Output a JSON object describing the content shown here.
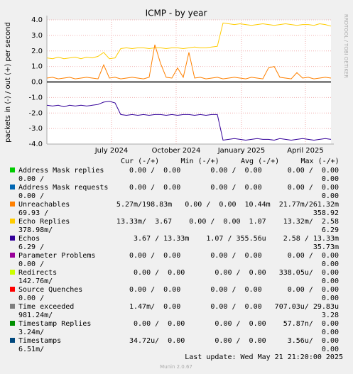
{
  "chart_data": {
    "type": "line",
    "title": "ICMP - by year",
    "y_label": "packets in (-) / out (+) per second",
    "x": [
      0,
      8,
      16,
      24,
      32,
      40,
      48,
      56,
      64,
      72,
      80,
      88,
      96,
      104,
      112,
      120,
      128,
      136,
      144,
      152,
      160,
      168,
      176,
      184,
      192,
      200,
      208,
      216,
      224,
      232,
      240,
      248,
      256,
      264,
      272,
      280,
      288,
      296,
      304,
      312,
      320,
      328,
      336,
      344,
      352,
      360,
      368,
      376,
      384,
      392,
      400
    ],
    "xlim": [
      0,
      400
    ],
    "xticks": [
      {
        "value": 91,
        "label": "July 2024"
      },
      {
        "value": 182,
        "label": "October 2024"
      },
      {
        "value": 274,
        "label": "January 2025"
      },
      {
        "value": 364,
        "label": "April 2025"
      }
    ],
    "ylim": [
      -4,
      4
    ],
    "yticks": [
      {
        "value": 4,
        "label": "4.0"
      },
      {
        "value": 3,
        "label": "3.0"
      },
      {
        "value": 2,
        "label": "2.0"
      },
      {
        "value": 1,
        "label": "1.0"
      },
      {
        "value": 0,
        "label": "0.0"
      },
      {
        "value": -1,
        "label": "-1.0"
      },
      {
        "value": -2,
        "label": "-2.0"
      },
      {
        "value": -3,
        "label": "-3.0"
      },
      {
        "value": -4,
        "label": "-4.0"
      }
    ],
    "grid": true,
    "series": [
      {
        "name": "Echo Replies",
        "color": "#ffcc00",
        "values": [
          1.55,
          1.5,
          1.6,
          1.5,
          1.55,
          1.6,
          1.5,
          1.6,
          1.55,
          1.65,
          1.9,
          1.5,
          1.55,
          2.15,
          2.2,
          2.15,
          2.2,
          2.2,
          2.15,
          2.2,
          2.2,
          2.15,
          2.2,
          2.2,
          2.15,
          2.2,
          2.25,
          2.2,
          2.2,
          2.25,
          2.3,
          3.8,
          3.75,
          3.7,
          3.75,
          3.7,
          3.65,
          3.7,
          3.75,
          3.7,
          3.65,
          3.7,
          3.75,
          3.7,
          3.65,
          3.7,
          3.7,
          3.65,
          3.75,
          3.7,
          3.6
        ]
      },
      {
        "name": "Unreachables",
        "color": "#ff8000",
        "values": [
          0.25,
          0.3,
          0.2,
          0.25,
          0.3,
          0.2,
          0.25,
          0.3,
          0.25,
          0.2,
          1.1,
          0.25,
          0.3,
          0.2,
          0.25,
          0.3,
          0.25,
          0.2,
          0.3,
          2.4,
          1.2,
          0.3,
          0.25,
          0.9,
          0.3,
          1.9,
          0.25,
          0.3,
          0.2,
          0.25,
          0.3,
          0.2,
          0.25,
          0.3,
          0.25,
          0.2,
          0.3,
          0.25,
          0.2,
          0.9,
          1.0,
          0.3,
          0.25,
          0.2,
          0.6,
          0.25,
          0.3,
          0.2,
          0.25,
          0.3,
          0.25
        ]
      },
      {
        "name": "Echos",
        "color": "#330099",
        "values": [
          -1.5,
          -1.55,
          -1.5,
          -1.6,
          -1.5,
          -1.55,
          -1.5,
          -1.55,
          -1.5,
          -1.45,
          -1.3,
          -1.25,
          -1.35,
          -2.1,
          -2.15,
          -2.1,
          -2.15,
          -2.1,
          -2.15,
          -2.1,
          -2.1,
          -2.15,
          -2.1,
          -2.15,
          -2.1,
          -2.1,
          -2.15,
          -2.1,
          -2.15,
          -2.1,
          -2.1,
          -3.75,
          -3.7,
          -3.65,
          -3.7,
          -3.75,
          -3.7,
          -3.65,
          -3.7,
          -3.7,
          -3.75,
          -3.65,
          -3.7,
          -3.75,
          -3.7,
          -3.65,
          -3.7,
          -3.75,
          -3.7,
          -3.65,
          -3.7
        ]
      }
    ],
    "legend": {
      "columns": [
        "Cur (-/+)",
        "Min (-/+)",
        "Avg (-/+)",
        "Max (-/+)"
      ],
      "rows": [
        {
          "name": "Address Mask replies",
          "color": "#00cc00",
          "line1": "0.00 /  0.00       0.00 /  0.00      0.00 /  0.00",
          "wrap": "0.00 /",
          "end": "0.00"
        },
        {
          "name": "Address Mask requests",
          "color": "#0066b3",
          "line1": "0.00 /  0.00       0.00 /  0.00      0.00 /  0.00",
          "wrap": "0.00 /",
          "end": "0.00"
        },
        {
          "name": "Unreachables",
          "color": "#ff8000",
          "line1": "5.27m/198.83m   0.00 /  0.00  10.44m  21.77m/261.32m",
          "wrap": "69.93 /",
          "end": "358.92"
        },
        {
          "name": "Echo Replies",
          "color": "#ffcc00",
          "line1": "13.33m/  3.67    0.00 /  0.00  1.07    13.32m/  2.58",
          "wrap": "378.98m/",
          "end": "6.29"
        },
        {
          "name": "Echos",
          "color": "#330099",
          "line1": "3.67 / 13.33m    1.07 / 355.56u    2.58 / 13.33m",
          "wrap": "6.29 /",
          "end": "35.73m"
        },
        {
          "name": "Parameter Problems",
          "color": "#990099",
          "line1": "0.00 /  0.00       0.00 /  0.00      0.00 /  0.00",
          "wrap": "0.00 /",
          "end": "0.00"
        },
        {
          "name": "Redirects",
          "color": "#ccff00",
          "line1": "0.00 /  0.00       0.00 /  0.00   338.05u/  0.00",
          "wrap": "142.76m/",
          "end": "0.00"
        },
        {
          "name": "Source Quenches",
          "color": "#ff0000",
          "line1": "0.00 /  0.00       0.00 /  0.00      0.00 /  0.00",
          "wrap": "0.00 /",
          "end": "0.00"
        },
        {
          "name": "Time exceeded",
          "color": "#808080",
          "line1": "1.47m/  0.00       0.00 /  0.00   707.03u/ 29.83u",
          "wrap": "981.24m/",
          "end": "3.28"
        },
        {
          "name": "Timestamp Replies",
          "color": "#008f00",
          "line1": "0.00 /  0.00       0.00 /  0.00    57.87n/  0.00",
          "wrap": "3.24m/",
          "end": "0.00"
        },
        {
          "name": "Timestamps",
          "color": "#00487d",
          "line1": "34.72u/  0.00       0.00 /  0.00     3.56u/  0.00",
          "wrap": "6.51m/",
          "end": "0.00"
        }
      ]
    },
    "footer": "Last update: Wed May 21 21:20:00 2025",
    "version": "Munin 2.0.67",
    "watermark": "RRDTOOL / TOBI OETIKER"
  }
}
